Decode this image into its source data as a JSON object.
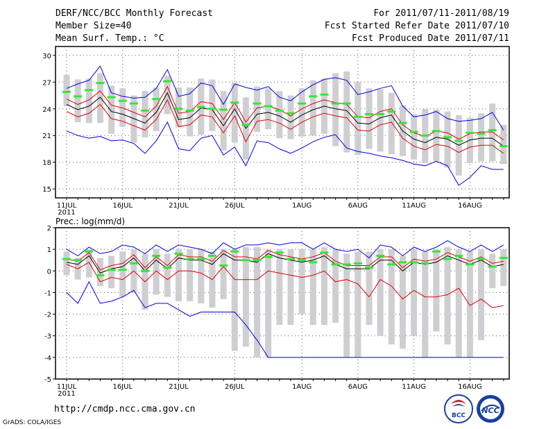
{
  "header": {
    "title": "DERF/NCC/BCC Monthly Forecast",
    "member_size": "Member Size=40",
    "variable": "Mean Surf. Temp.: °C",
    "period": "For 2011/07/11-2011/08/19",
    "started": "Fcst Started Refer Date 2011/07/10",
    "produced": "Fcst Produced Date 2011/07/11"
  },
  "footer": {
    "url": "http://cmdp.ncc.cma.gov.cn",
    "credit": "GrADS: COLA/IGES",
    "logo1_text": "BCC",
    "logo2_text": "NCC"
  },
  "chart_data": [
    {
      "type": "line",
      "title": "Mean Surf. Temp.: °C",
      "ylabel": "°C",
      "ylim": [
        14,
        31
      ],
      "yticks": [
        15,
        18,
        21,
        24,
        27,
        30
      ],
      "xlabels": [
        {
          "day": 1,
          "label": "11JUL",
          "sub": "2011"
        },
        {
          "day": 6,
          "label": "16JUL"
        },
        {
          "day": 11,
          "label": "21JUL"
        },
        {
          "day": 16,
          "label": "26JUL"
        },
        {
          "day": 22,
          "label": "1AUG"
        },
        {
          "day": 27,
          "label": "6AUG"
        },
        {
          "day": 32,
          "label": "11AUG"
        },
        {
          "day": 37,
          "label": "16AUG"
        }
      ],
      "days": [
        1,
        2,
        3,
        4,
        5,
        6,
        7,
        8,
        9,
        10,
        11,
        12,
        13,
        14,
        15,
        16,
        17,
        18,
        19,
        20,
        21,
        22,
        23,
        24,
        25,
        26,
        27,
        28,
        29,
        30,
        31,
        32,
        33,
        34,
        35,
        36,
        37,
        38,
        39,
        40
      ],
      "ensemble_mean": [
        24.5,
        23.9,
        24.3,
        25.3,
        23.7,
        23.4,
        22.9,
        22.4,
        23.6,
        25.8,
        22.8,
        23.0,
        24.1,
        23.9,
        22.1,
        24.0,
        21.8,
        23.4,
        23.6,
        23.2,
        22.5,
        23.3,
        23.9,
        24.3,
        24.0,
        23.8,
        22.4,
        22.3,
        23.0,
        23.3,
        21.5,
        20.6,
        20.2,
        20.8,
        20.6,
        19.9,
        20.5,
        20.7,
        20.7,
        19.8
      ],
      "upper_red": [
        25.1,
        24.5,
        25.0,
        26.0,
        24.4,
        24.1,
        23.6,
        23.1,
        24.3,
        26.5,
        23.5,
        23.7,
        24.8,
        24.6,
        22.8,
        24.7,
        22.5,
        24.1,
        24.3,
        23.9,
        23.2,
        24.0,
        24.6,
        25.0,
        24.7,
        24.5,
        23.1,
        23.0,
        23.7,
        24.0,
        22.2,
        21.3,
        20.9,
        21.5,
        21.3,
        20.6,
        21.2,
        21.4,
        21.4,
        20.5
      ],
      "lower_red": [
        23.7,
        23.1,
        23.5,
        24.5,
        22.9,
        22.6,
        22.1,
        21.6,
        22.8,
        25.0,
        22.0,
        22.2,
        23.3,
        23.1,
        21.3,
        23.2,
        20.3,
        22.6,
        22.8,
        22.4,
        21.7,
        22.5,
        23.1,
        23.5,
        23.2,
        23.0,
        21.6,
        21.5,
        22.2,
        22.5,
        20.7,
        19.8,
        19.4,
        20.0,
        19.8,
        19.1,
        19.7,
        19.9,
        19.9,
        19.0
      ],
      "max_blue": [
        26.3,
        26.8,
        27.2,
        28.8,
        25.8,
        25.4,
        25.2,
        25.3,
        26.3,
        28.4,
        25.4,
        25.7,
        26.9,
        26.6,
        24.5,
        26.8,
        26.4,
        26.1,
        26.5,
        25.3,
        24.9,
        25.9,
        26.7,
        27.3,
        27.5,
        27.2,
        25.6,
        25.9,
        26.3,
        26.6,
        24.3,
        23.1,
        23.3,
        23.7,
        22.9,
        22.6,
        22.7,
        22.9,
        23.6,
        21.6
      ],
      "min_blue": [
        21.5,
        21.0,
        20.7,
        20.9,
        20.4,
        20.5,
        20.1,
        19.0,
        20.4,
        22.5,
        19.5,
        19.3,
        20.7,
        21.0,
        18.8,
        19.7,
        17.6,
        20.4,
        20.2,
        19.5,
        19.0,
        19.6,
        20.3,
        20.8,
        21.1,
        19.6,
        19.2,
        19.0,
        18.7,
        18.5,
        18.2,
        17.8,
        17.6,
        18.1,
        17.6,
        15.4,
        16.3,
        17.6,
        17.2,
        17.2
      ],
      "observed_green": [
        25.9,
        25.4,
        26.1,
        26.9,
        25.3,
        24.9,
        24.6,
        23.8,
        25.1,
        27.1,
        24.0,
        23.8,
        24.2,
        24.0,
        23.9,
        24.7,
        22.2,
        24.6,
        24.3,
        23.8,
        23.5,
        24.6,
        25.4,
        25.6,
        24.6,
        24.6,
        23.1,
        23.4,
        23.4,
        23.7,
        22.4,
        21.4,
        21.0,
        21.5,
        20.8,
        20.4,
        21.3,
        21.2,
        21.6,
        19.8
      ],
      "box_upper": [
        27.8,
        27.3,
        27.4,
        28.0,
        26.6,
        26.3,
        25.5,
        26.0,
        26.4,
        27.7,
        26.4,
        26.4,
        27.4,
        27.3,
        26.0,
        26.9,
        25.3,
        26.5,
        26.3,
        26.0,
        25.5,
        26.3,
        27.2,
        27.4,
        28.0,
        28.2,
        27.0,
        26.3,
        26.2,
        25.8,
        24.4,
        23.4,
        24.0,
        23.9,
        23.7,
        23.3,
        23.0,
        23.5,
        24.6,
        22.2
      ],
      "box_lower": [
        24.3,
        22.5,
        22.4,
        22.4,
        21.2,
        22.0,
        20.2,
        20.8,
        21.5,
        23.4,
        21.9,
        20.9,
        21.1,
        21.5,
        19.3,
        20.2,
        18.3,
        21.4,
        21.7,
        20.7,
        20.6,
        20.9,
        21.0,
        21.2,
        19.8,
        19.1,
        18.8,
        19.5,
        19.2,
        18.9,
        18.7,
        18.3,
        17.9,
        18.1,
        17.4,
        16.5,
        17.9,
        18.1,
        18.1,
        17.8
      ]
    },
    {
      "type": "line",
      "title": "Prec.: log(mm/d)",
      "ylabel": "log(mm/d)",
      "ylim": [
        -5,
        2
      ],
      "yticks": [
        -5,
        -4,
        -3,
        -2,
        -1,
        0,
        1,
        2
      ],
      "xlabels": [
        {
          "day": 1,
          "label": "11JUL",
          "sub": "2011"
        },
        {
          "day": 6,
          "label": "16JUL"
        },
        {
          "day": 11,
          "label": "21JUL"
        },
        {
          "day": 16,
          "label": "26JUL"
        },
        {
          "day": 22,
          "label": "1AUG"
        },
        {
          "day": 27,
          "label": "6AUG"
        },
        {
          "day": 32,
          "label": "11AUG"
        },
        {
          "day": 37,
          "label": "16AUG"
        }
      ],
      "days": [
        1,
        2,
        3,
        4,
        5,
        6,
        7,
        8,
        9,
        10,
        11,
        12,
        13,
        14,
        15,
        16,
        17,
        18,
        19,
        20,
        21,
        22,
        23,
        24,
        25,
        26,
        27,
        28,
        29,
        30,
        31,
        32,
        33,
        34,
        35,
        36,
        37,
        38,
        39,
        40
      ],
      "ensemble_mean": [
        0.4,
        0.3,
        0.7,
        -0.1,
        0.1,
        0.2,
        0.6,
        0.0,
        0.5,
        0.1,
        0.6,
        0.5,
        0.5,
        0.3,
        0.8,
        0.5,
        0.5,
        0.4,
        0.8,
        0.6,
        0.5,
        0.4,
        0.5,
        0.7,
        0.3,
        0.1,
        0.1,
        0.1,
        0.5,
        0.5,
        0.0,
        0.4,
        0.3,
        0.4,
        0.7,
        0.5,
        0.3,
        0.5,
        0.2,
        0.3
      ],
      "upper_red": [
        0.55,
        0.45,
        0.85,
        0.05,
        0.25,
        0.35,
        0.75,
        0.15,
        0.65,
        0.25,
        0.75,
        0.65,
        0.65,
        0.45,
        0.95,
        0.65,
        0.65,
        0.55,
        0.95,
        0.75,
        0.65,
        0.55,
        0.65,
        0.85,
        0.45,
        0.25,
        0.25,
        0.25,
        0.65,
        0.65,
        0.15,
        0.55,
        0.45,
        0.55,
        0.85,
        0.65,
        0.45,
        0.65,
        0.35,
        0.45
      ],
      "lower_red": [
        0.3,
        0.1,
        0.4,
        -0.5,
        -0.3,
        -0.4,
        0.0,
        -0.5,
        0.0,
        -0.4,
        0.0,
        0.0,
        -0.1,
        -0.4,
        0.2,
        -0.4,
        -0.4,
        -0.4,
        0.0,
        -0.1,
        -0.2,
        -0.3,
        -0.2,
        0.0,
        -0.5,
        -0.4,
        -0.6,
        -1.2,
        -0.4,
        -0.7,
        -1.3,
        -0.9,
        -1.2,
        -1.2,
        -1.1,
        -0.8,
        -1.6,
        -1.3,
        -1.7,
        -1.6
      ],
      "max_blue": [
        1.0,
        0.7,
        1.1,
        0.8,
        0.9,
        1.2,
        1.1,
        0.8,
        1.2,
        0.9,
        1.2,
        1.1,
        1.0,
        0.8,
        1.3,
        1.0,
        1.2,
        1.2,
        1.3,
        1.2,
        1.3,
        1.3,
        1.0,
        1.3,
        1.0,
        0.9,
        1.0,
        0.6,
        1.2,
        1.1,
        0.7,
        1.1,
        0.9,
        1.1,
        1.4,
        1.1,
        0.9,
        1.2,
        0.9,
        1.2
      ],
      "min_blue": [
        -1.0,
        -1.5,
        -0.5,
        -1.5,
        -1.4,
        -1.2,
        -0.9,
        -1.7,
        -1.5,
        -1.5,
        -1.8,
        -2.1,
        -1.9,
        -1.9,
        -1.9,
        -1.9,
        -2.5,
        -3.2,
        -4.0,
        -4.0,
        -4.0,
        -4.0,
        -4.0,
        -4.0,
        -4.0,
        -4.0,
        -4.0,
        -4.0,
        -4.0,
        -4.0,
        -4.0,
        -4.0,
        -4.0,
        -4.0,
        -4.0,
        -4.0,
        -4.0,
        -4.0,
        -4.0,
        -4.0
      ],
      "observed_green": [
        0.55,
        0.5,
        0.9,
        -0.2,
        0.05,
        0.05,
        0.35,
        0.0,
        0.7,
        0.15,
        0.8,
        0.55,
        0.55,
        0.7,
        0.25,
        0.9,
        0.5,
        0.5,
        0.65,
        0.85,
        0.55,
        0.5,
        0.4,
        0.85,
        0.3,
        0.3,
        0.35,
        0.15,
        0.7,
        0.3,
        0.4,
        0.4,
        0.35,
        0.9,
        0.55,
        0.7,
        0.3,
        0.55,
        0.2,
        0.6
      ],
      "box_upper": [
        0.9,
        0.6,
        1.0,
        0.6,
        0.7,
        0.9,
        1.0,
        0.8,
        1.0,
        0.8,
        1.0,
        1.0,
        1.0,
        0.9,
        1.0,
        1.0,
        1.1,
        1.1,
        1.0,
        1.0,
        1.0,
        1.0,
        1.0,
        1.1,
        1.0,
        0.8,
        0.9,
        0.9,
        1.0,
        1.0,
        0.7,
        1.0,
        0.9,
        1.0,
        1.1,
        1.0,
        0.9,
        1.0,
        0.8,
        1.0
      ],
      "box_lower": [
        -0.2,
        -0.4,
        -0.3,
        -0.7,
        -0.8,
        -1.2,
        -1.0,
        -1.8,
        -1.1,
        -1.2,
        -1.4,
        -1.4,
        -1.5,
        -1.7,
        -1.3,
        -3.7,
        -3.5,
        -4.0,
        -4.0,
        -2.5,
        -2.5,
        -2.0,
        -2.5,
        -2.5,
        -2.4,
        -4.0,
        -4.0,
        -2.5,
        -3.0,
        -3.4,
        -3.6,
        -3.0,
        -4.0,
        -2.8,
        -3.4,
        -4.0,
        -4.0,
        -3.2,
        -0.8,
        -0.7
      ]
    }
  ]
}
